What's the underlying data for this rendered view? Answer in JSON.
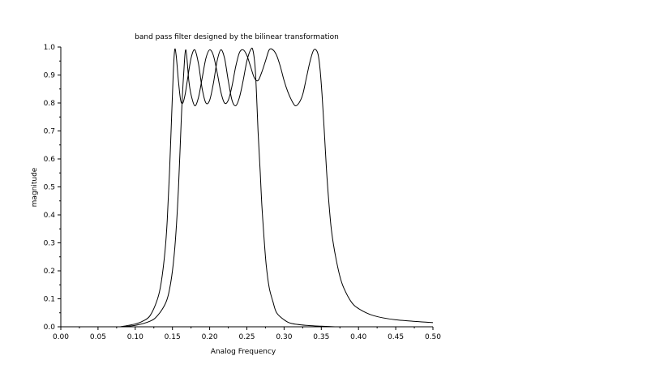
{
  "chart_data": {
    "type": "line",
    "title": "band pass filter designed by the bilinear transformation",
    "xlabel": "Analog Frequency",
    "ylabel": "magnitude",
    "xlim": [
      0.0,
      0.5
    ],
    "ylim": [
      0.0,
      1.0
    ],
    "xticks": [
      "0.00",
      "0.05",
      "0.10",
      "0.15",
      "0.20",
      "0.25",
      "0.30",
      "0.35",
      "0.40",
      "0.45",
      "0.50"
    ],
    "yticks": [
      "0.0",
      "0.1",
      "0.2",
      "0.3",
      "0.4",
      "0.5",
      "0.6",
      "0.7",
      "0.8",
      "0.9",
      "1.0"
    ],
    "grid": false,
    "legend": "none",
    "line_color": "#000000",
    "series": [
      {
        "x": [
          0.08,
          0.1,
          0.11,
          0.12,
          0.13,
          0.135,
          0.14,
          0.143,
          0.146,
          0.149,
          0.151,
          0.153,
          0.155,
          0.158,
          0.161,
          0.164,
          0.167,
          0.17,
          0.175,
          0.18,
          0.185,
          0.19,
          0.195,
          0.2,
          0.205,
          0.21,
          0.215,
          0.22,
          0.225,
          0.23,
          0.235,
          0.24,
          0.245,
          0.25,
          0.255,
          0.258,
          0.261,
          0.263,
          0.265,
          0.268,
          0.27,
          0.273,
          0.276,
          0.28,
          0.285,
          0.29,
          0.3,
          0.31,
          0.33,
          0.35,
          0.37
        ],
        "y": [
          0.0,
          0.01,
          0.02,
          0.04,
          0.1,
          0.16,
          0.27,
          0.38,
          0.55,
          0.76,
          0.9,
          0.99,
          0.97,
          0.88,
          0.81,
          0.8,
          0.83,
          0.88,
          0.96,
          0.99,
          0.94,
          0.85,
          0.8,
          0.81,
          0.87,
          0.95,
          0.99,
          0.96,
          0.88,
          0.81,
          0.79,
          0.82,
          0.88,
          0.95,
          0.99,
          0.99,
          0.93,
          0.83,
          0.7,
          0.55,
          0.44,
          0.32,
          0.22,
          0.14,
          0.09,
          0.05,
          0.025,
          0.012,
          0.005,
          0.002,
          0.0
        ]
      },
      {
        "x": [
          0.08,
          0.1,
          0.12,
          0.13,
          0.14,
          0.145,
          0.15,
          0.154,
          0.158,
          0.162,
          0.165,
          0.168,
          0.172,
          0.175,
          0.18,
          0.185,
          0.19,
          0.195,
          0.2,
          0.205,
          0.21,
          0.215,
          0.22,
          0.225,
          0.23,
          0.235,
          0.24,
          0.245,
          0.25,
          0.255,
          0.26,
          0.265,
          0.27,
          0.275,
          0.28,
          0.285,
          0.29,
          0.295,
          0.3,
          0.305,
          0.31,
          0.315,
          0.32,
          0.325,
          0.33,
          0.335,
          0.34,
          0.345,
          0.348,
          0.351,
          0.354,
          0.357,
          0.36,
          0.363,
          0.366,
          0.37,
          0.375,
          0.38,
          0.39,
          0.4,
          0.42,
          0.45,
          0.5
        ],
        "y": [
          0.0,
          0.005,
          0.02,
          0.04,
          0.08,
          0.12,
          0.2,
          0.31,
          0.49,
          0.75,
          0.9,
          0.99,
          0.88,
          0.83,
          0.79,
          0.82,
          0.89,
          0.96,
          0.99,
          0.97,
          0.91,
          0.84,
          0.8,
          0.81,
          0.86,
          0.93,
          0.98,
          0.99,
          0.97,
          0.93,
          0.89,
          0.88,
          0.91,
          0.95,
          0.99,
          0.99,
          0.97,
          0.93,
          0.88,
          0.84,
          0.81,
          0.79,
          0.8,
          0.83,
          0.89,
          0.95,
          0.99,
          0.98,
          0.93,
          0.83,
          0.7,
          0.56,
          0.45,
          0.36,
          0.3,
          0.24,
          0.18,
          0.14,
          0.09,
          0.065,
          0.04,
          0.025,
          0.015
        ]
      }
    ]
  }
}
